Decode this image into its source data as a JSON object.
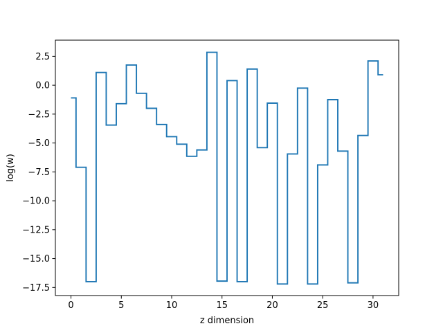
{
  "chart_data": {
    "type": "line",
    "drawstyle": "steps-mid",
    "title": "",
    "xlabel": "z dimension",
    "ylabel": "log(w)",
    "xlim": [
      -1.55,
      32.55
    ],
    "ylim": [
      -18.2,
      3.9
    ],
    "xticks": [
      0,
      5,
      10,
      15,
      20,
      25,
      30
    ],
    "xtick_labels": [
      "0",
      "5",
      "10",
      "15",
      "20",
      "25",
      "30"
    ],
    "yticks": [
      2.5,
      0.0,
      -2.5,
      -5.0,
      -7.5,
      -10.0,
      -12.5,
      -15.0,
      -17.5
    ],
    "ytick_labels": [
      "2.5",
      "0.0",
      "−2.5",
      "−5.0",
      "−7.5",
      "−10.0",
      "−12.5",
      "−15.0",
      "−17.5"
    ],
    "grid": false,
    "legend": "none",
    "series": [
      {
        "color": "#1f77b4",
        "x": [
          0,
          1,
          2,
          3,
          4,
          5,
          6,
          7,
          8,
          9,
          10,
          11,
          12,
          13,
          14,
          15,
          16,
          17,
          18,
          19,
          20,
          21,
          22,
          23,
          24,
          25,
          26,
          27,
          28,
          29,
          30,
          31
        ],
        "y": [
          -1.1,
          -7.1,
          -17.0,
          1.1,
          -3.45,
          -1.6,
          1.75,
          -0.7,
          -2.0,
          -3.4,
          -4.45,
          -5.1,
          -6.15,
          -5.6,
          2.85,
          -16.95,
          0.4,
          -17.0,
          1.4,
          -5.4,
          -1.55,
          -17.2,
          -5.95,
          -0.25,
          -17.2,
          -6.9,
          -1.25,
          -5.7,
          -17.1,
          -4.35,
          2.1,
          0.9
        ]
      }
    ]
  }
}
